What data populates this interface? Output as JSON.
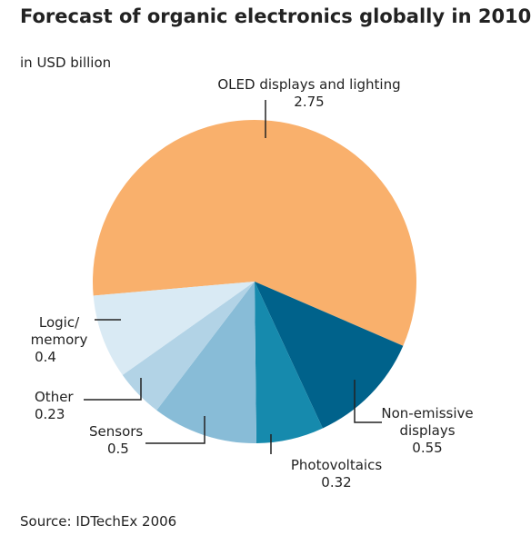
{
  "chart_data": {
    "type": "pie",
    "title": "Forecast of organic electronics globally in 2010",
    "subtitle": "in USD billion",
    "categories": [
      "OLED displays and lighting",
      "Non-emissive displays",
      "Photovoltaics",
      "Sensors",
      "Other",
      "Logic/ memory"
    ],
    "values": [
      2.75,
      0.55,
      0.32,
      0.5,
      0.23,
      0.4
    ],
    "colors": [
      "#f9b06c",
      "#00628b",
      "#168aad",
      "#88bcd7",
      "#b2d3e6",
      "#d9eaf4"
    ],
    "source": "Source: IDTechEx 2006"
  }
}
